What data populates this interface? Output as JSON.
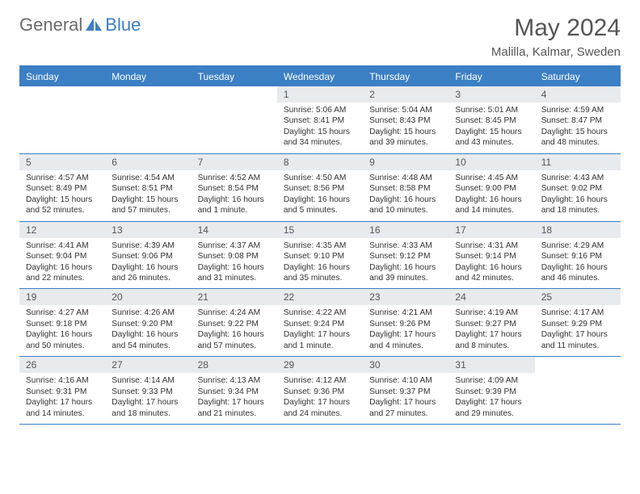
{
  "logo": {
    "text1": "General",
    "text2": "Blue"
  },
  "title": "May 2024",
  "location": "Malilla, Kalmar, Sweden",
  "colors": {
    "header_bg": "#3b7fc4",
    "header_text": "#ffffff",
    "daynum_bg": "#e8ebee",
    "border": "#3b7fc4",
    "body_text": "#333333",
    "title_text": "#555555"
  },
  "day_headers": [
    "Sunday",
    "Monday",
    "Tuesday",
    "Wednesday",
    "Thursday",
    "Friday",
    "Saturday"
  ],
  "weeks": [
    [
      null,
      null,
      null,
      {
        "n": "1",
        "sr": "5:06 AM",
        "ss": "8:41 PM",
        "dl": "15 hours and 34 minutes."
      },
      {
        "n": "2",
        "sr": "5:04 AM",
        "ss": "8:43 PM",
        "dl": "15 hours and 39 minutes."
      },
      {
        "n": "3",
        "sr": "5:01 AM",
        "ss": "8:45 PM",
        "dl": "15 hours and 43 minutes."
      },
      {
        "n": "4",
        "sr": "4:59 AM",
        "ss": "8:47 PM",
        "dl": "15 hours and 48 minutes."
      }
    ],
    [
      {
        "n": "5",
        "sr": "4:57 AM",
        "ss": "8:49 PM",
        "dl": "15 hours and 52 minutes."
      },
      {
        "n": "6",
        "sr": "4:54 AM",
        "ss": "8:51 PM",
        "dl": "15 hours and 57 minutes."
      },
      {
        "n": "7",
        "sr": "4:52 AM",
        "ss": "8:54 PM",
        "dl": "16 hours and 1 minute."
      },
      {
        "n": "8",
        "sr": "4:50 AM",
        "ss": "8:56 PM",
        "dl": "16 hours and 5 minutes."
      },
      {
        "n": "9",
        "sr": "4:48 AM",
        "ss": "8:58 PM",
        "dl": "16 hours and 10 minutes."
      },
      {
        "n": "10",
        "sr": "4:45 AM",
        "ss": "9:00 PM",
        "dl": "16 hours and 14 minutes."
      },
      {
        "n": "11",
        "sr": "4:43 AM",
        "ss": "9:02 PM",
        "dl": "16 hours and 18 minutes."
      }
    ],
    [
      {
        "n": "12",
        "sr": "4:41 AM",
        "ss": "9:04 PM",
        "dl": "16 hours and 22 minutes."
      },
      {
        "n": "13",
        "sr": "4:39 AM",
        "ss": "9:06 PM",
        "dl": "16 hours and 26 minutes."
      },
      {
        "n": "14",
        "sr": "4:37 AM",
        "ss": "9:08 PM",
        "dl": "16 hours and 31 minutes."
      },
      {
        "n": "15",
        "sr": "4:35 AM",
        "ss": "9:10 PM",
        "dl": "16 hours and 35 minutes."
      },
      {
        "n": "16",
        "sr": "4:33 AM",
        "ss": "9:12 PM",
        "dl": "16 hours and 39 minutes."
      },
      {
        "n": "17",
        "sr": "4:31 AM",
        "ss": "9:14 PM",
        "dl": "16 hours and 42 minutes."
      },
      {
        "n": "18",
        "sr": "4:29 AM",
        "ss": "9:16 PM",
        "dl": "16 hours and 46 minutes."
      }
    ],
    [
      {
        "n": "19",
        "sr": "4:27 AM",
        "ss": "9:18 PM",
        "dl": "16 hours and 50 minutes."
      },
      {
        "n": "20",
        "sr": "4:26 AM",
        "ss": "9:20 PM",
        "dl": "16 hours and 54 minutes."
      },
      {
        "n": "21",
        "sr": "4:24 AM",
        "ss": "9:22 PM",
        "dl": "16 hours and 57 minutes."
      },
      {
        "n": "22",
        "sr": "4:22 AM",
        "ss": "9:24 PM",
        "dl": "17 hours and 1 minute."
      },
      {
        "n": "23",
        "sr": "4:21 AM",
        "ss": "9:26 PM",
        "dl": "17 hours and 4 minutes."
      },
      {
        "n": "24",
        "sr": "4:19 AM",
        "ss": "9:27 PM",
        "dl": "17 hours and 8 minutes."
      },
      {
        "n": "25",
        "sr": "4:17 AM",
        "ss": "9:29 PM",
        "dl": "17 hours and 11 minutes."
      }
    ],
    [
      {
        "n": "26",
        "sr": "4:16 AM",
        "ss": "9:31 PM",
        "dl": "17 hours and 14 minutes."
      },
      {
        "n": "27",
        "sr": "4:14 AM",
        "ss": "9:33 PM",
        "dl": "17 hours and 18 minutes."
      },
      {
        "n": "28",
        "sr": "4:13 AM",
        "ss": "9:34 PM",
        "dl": "17 hours and 21 minutes."
      },
      {
        "n": "29",
        "sr": "4:12 AM",
        "ss": "9:36 PM",
        "dl": "17 hours and 24 minutes."
      },
      {
        "n": "30",
        "sr": "4:10 AM",
        "ss": "9:37 PM",
        "dl": "17 hours and 27 minutes."
      },
      {
        "n": "31",
        "sr": "4:09 AM",
        "ss": "9:39 PM",
        "dl": "17 hours and 29 minutes."
      },
      null
    ]
  ],
  "labels": {
    "sunrise": "Sunrise:",
    "sunset": "Sunset:",
    "daylight": "Daylight:"
  }
}
